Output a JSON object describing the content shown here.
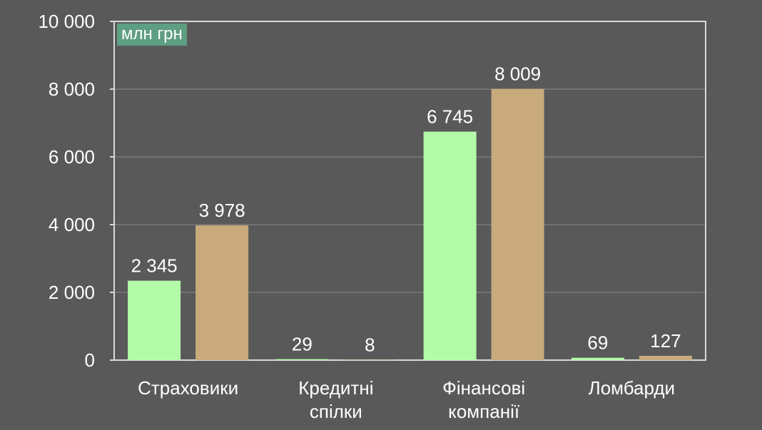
{
  "chart_data": {
    "type": "bar",
    "unit_label": "млн грн",
    "categories": [
      [
        "Страховики"
      ],
      [
        "Кредитні",
        "спілки"
      ],
      [
        "Фінансові",
        "компанії"
      ],
      [
        "Ломбарди"
      ]
    ],
    "series": [
      {
        "values": [
          2345,
          29,
          6745,
          69
        ],
        "labels": [
          "2 345",
          "29",
          "6 745",
          "69"
        ],
        "color": "#b3fba9"
      },
      {
        "values": [
          3978,
          8,
          8009,
          127
        ],
        "labels": [
          "3 978",
          "8",
          "8 009",
          "127"
        ],
        "color": "#c8aa7d"
      }
    ],
    "y_ticks": [
      {
        "value": 0,
        "label": "0"
      },
      {
        "value": 2000,
        "label": "2 000"
      },
      {
        "value": 4000,
        "label": "4 000"
      },
      {
        "value": 6000,
        "label": "6 000"
      },
      {
        "value": 8000,
        "label": "8 000"
      },
      {
        "value": 10000,
        "label": "10 000"
      }
    ],
    "ylim": [
      0,
      10000
    ],
    "grid": true,
    "colors": {
      "background": "#595959",
      "axis": "#d9d9d9",
      "grid": "#8c8c8c",
      "text": "#ffffff",
      "badge": "#5e9e82"
    }
  }
}
